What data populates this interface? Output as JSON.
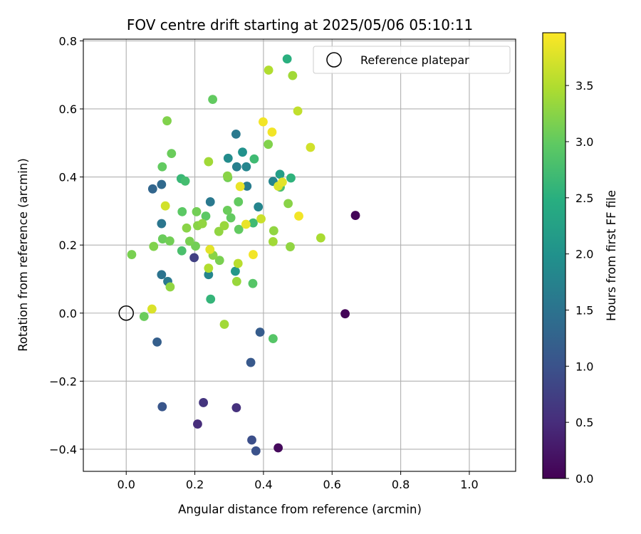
{
  "chart_data": {
    "type": "scatter",
    "title": "FOV centre drift starting at 2025/05/06 05:10:11",
    "xlabel": "Angular distance from reference (arcmin)",
    "ylabel": "Rotation from reference (arcmin)",
    "xlim": [
      -0.125,
      1.135
    ],
    "ylim": [
      -0.465,
      0.805
    ],
    "xticks": [
      "0.0",
      "0.2",
      "0.4",
      "0.6",
      "0.8",
      "1.0"
    ],
    "yticks": [
      "−0.4",
      "−0.2",
      "0.0",
      "0.2",
      "0.4",
      "0.6",
      "0.8"
    ],
    "grid": true,
    "legend": {
      "position": "top-right",
      "entries": [
        {
          "label": "Reference platepar",
          "marker": "hollow circle"
        }
      ]
    },
    "reference_point": {
      "x": 0.0,
      "y": 0.0
    },
    "colorbar": {
      "label": "Hours from first FF file",
      "colormap": "viridis",
      "range": [
        0.0,
        3.97
      ],
      "ticks": [
        "0.0",
        "0.5",
        "1.0",
        "1.5",
        "2.0",
        "2.5",
        "3.0",
        "3.5"
      ]
    },
    "points": [
      {
        "x": 0.668,
        "y": 0.287,
        "h": 0.05
      },
      {
        "x": 0.638,
        "y": -0.002,
        "h": 0.05
      },
      {
        "x": 0.443,
        "y": -0.396,
        "h": 0.1
      },
      {
        "x": 0.208,
        "y": -0.326,
        "h": 0.5
      },
      {
        "x": 0.225,
        "y": -0.263,
        "h": 0.6
      },
      {
        "x": 0.321,
        "y": -0.278,
        "h": 0.55
      },
      {
        "x": 0.198,
        "y": 0.163,
        "h": 0.75
      },
      {
        "x": 0.366,
        "y": -0.373,
        "h": 0.95
      },
      {
        "x": 0.378,
        "y": -0.405,
        "h": 1.0
      },
      {
        "x": 0.105,
        "y": -0.275,
        "h": 1.05
      },
      {
        "x": 0.363,
        "y": -0.145,
        "h": 1.1
      },
      {
        "x": 0.39,
        "y": -0.056,
        "h": 1.15
      },
      {
        "x": 0.09,
        "y": -0.085,
        "h": 1.2
      },
      {
        "x": 0.077,
        "y": 0.365,
        "h": 1.3
      },
      {
        "x": 0.103,
        "y": 0.378,
        "h": 1.35
      },
      {
        "x": 0.103,
        "y": 0.263,
        "h": 1.55
      },
      {
        "x": 0.103,
        "y": 0.113,
        "h": 1.5
      },
      {
        "x": 0.121,
        "y": 0.093,
        "h": 1.6
      },
      {
        "x": 0.245,
        "y": 0.327,
        "h": 1.6
      },
      {
        "x": 0.24,
        "y": 0.113,
        "h": 1.8
      },
      {
        "x": 0.32,
        "y": 0.526,
        "h": 1.6
      },
      {
        "x": 0.322,
        "y": 0.43,
        "h": 1.7
      },
      {
        "x": 0.35,
        "y": 0.43,
        "h": 1.8
      },
      {
        "x": 0.352,
        "y": 0.373,
        "h": 1.65
      },
      {
        "x": 0.385,
        "y": 0.312,
        "h": 1.8
      },
      {
        "x": 0.428,
        "y": 0.387,
        "h": 1.8
      },
      {
        "x": 0.297,
        "y": 0.455,
        "h": 1.9
      },
      {
        "x": 0.339,
        "y": 0.473,
        "h": 2.0
      },
      {
        "x": 0.318,
        "y": 0.123,
        "h": 2.1
      },
      {
        "x": 0.448,
        "y": 0.408,
        "h": 2.2
      },
      {
        "x": 0.469,
        "y": 0.747,
        "h": 2.5
      },
      {
        "x": 0.48,
        "y": 0.397,
        "h": 2.55
      },
      {
        "x": 0.246,
        "y": 0.041,
        "h": 2.6
      },
      {
        "x": 0.373,
        "y": 0.453,
        "h": 2.7
      },
      {
        "x": 0.37,
        "y": 0.265,
        "h": 2.7
      },
      {
        "x": 0.16,
        "y": 0.395,
        "h": 2.65
      },
      {
        "x": 0.172,
        "y": 0.388,
        "h": 2.75
      },
      {
        "x": 0.162,
        "y": 0.183,
        "h": 2.8
      },
      {
        "x": 0.449,
        "y": 0.37,
        "h": 2.8
      },
      {
        "x": 0.428,
        "y": -0.075,
        "h": 2.9
      },
      {
        "x": 0.369,
        "y": 0.087,
        "h": 2.9
      },
      {
        "x": 0.252,
        "y": 0.628,
        "h": 3.0
      },
      {
        "x": 0.163,
        "y": 0.298,
        "h": 2.95
      },
      {
        "x": 0.232,
        "y": 0.285,
        "h": 2.95
      },
      {
        "x": 0.305,
        "y": 0.28,
        "h": 3.0
      },
      {
        "x": 0.327,
        "y": 0.327,
        "h": 3.0
      },
      {
        "x": 0.295,
        "y": 0.302,
        "h": 3.05
      },
      {
        "x": 0.328,
        "y": 0.246,
        "h": 3.0
      },
      {
        "x": 0.205,
        "y": 0.298,
        "h": 3.1
      },
      {
        "x": 0.202,
        "y": 0.197,
        "h": 3.1
      },
      {
        "x": 0.185,
        "y": 0.211,
        "h": 3.15
      },
      {
        "x": 0.105,
        "y": 0.43,
        "h": 3.0
      },
      {
        "x": 0.132,
        "y": 0.469,
        "h": 3.05
      },
      {
        "x": 0.106,
        "y": 0.218,
        "h": 3.05
      },
      {
        "x": 0.127,
        "y": 0.212,
        "h": 3.1
      },
      {
        "x": 0.08,
        "y": 0.196,
        "h": 3.2
      },
      {
        "x": 0.119,
        "y": 0.565,
        "h": 3.2
      },
      {
        "x": 0.052,
        "y": -0.01,
        "h": 3.05
      },
      {
        "x": 0.016,
        "y": 0.172,
        "h": 3.15
      },
      {
        "x": 0.128,
        "y": 0.077,
        "h": 3.3
      },
      {
        "x": 0.176,
        "y": 0.25,
        "h": 3.25
      },
      {
        "x": 0.208,
        "y": 0.257,
        "h": 3.25
      },
      {
        "x": 0.222,
        "y": 0.263,
        "h": 3.3
      },
      {
        "x": 0.272,
        "y": 0.155,
        "h": 3.15
      },
      {
        "x": 0.253,
        "y": 0.17,
        "h": 3.25
      },
      {
        "x": 0.27,
        "y": 0.24,
        "h": 3.3
      },
      {
        "x": 0.286,
        "y": 0.257,
        "h": 3.35
      },
      {
        "x": 0.296,
        "y": 0.398,
        "h": 3.1
      },
      {
        "x": 0.295,
        "y": 0.403,
        "h": 3.25
      },
      {
        "x": 0.24,
        "y": 0.445,
        "h": 3.4
      },
      {
        "x": 0.24,
        "y": 0.132,
        "h": 3.5
      },
      {
        "x": 0.286,
        "y": -0.033,
        "h": 3.4
      },
      {
        "x": 0.322,
        "y": 0.093,
        "h": 3.35
      },
      {
        "x": 0.326,
        "y": 0.146,
        "h": 3.55
      },
      {
        "x": 0.414,
        "y": 0.496,
        "h": 3.2
      },
      {
        "x": 0.43,
        "y": 0.242,
        "h": 3.3
      },
      {
        "x": 0.428,
        "y": 0.21,
        "h": 3.4
      },
      {
        "x": 0.472,
        "y": 0.322,
        "h": 3.25
      },
      {
        "x": 0.478,
        "y": 0.195,
        "h": 3.3
      },
      {
        "x": 0.485,
        "y": 0.698,
        "h": 3.4
      },
      {
        "x": 0.567,
        "y": 0.221,
        "h": 3.45
      },
      {
        "x": 0.415,
        "y": 0.714,
        "h": 3.5
      },
      {
        "x": 0.5,
        "y": 0.594,
        "h": 3.6
      },
      {
        "x": 0.393,
        "y": 0.277,
        "h": 3.65
      },
      {
        "x": 0.537,
        "y": 0.487,
        "h": 3.7
      },
      {
        "x": 0.443,
        "y": 0.373,
        "h": 3.75
      },
      {
        "x": 0.455,
        "y": 0.385,
        "h": 3.8
      },
      {
        "x": 0.114,
        "y": 0.315,
        "h": 3.7
      },
      {
        "x": 0.075,
        "y": 0.012,
        "h": 3.75
      },
      {
        "x": 0.244,
        "y": 0.187,
        "h": 3.8
      },
      {
        "x": 0.332,
        "y": 0.372,
        "h": 3.85
      },
      {
        "x": 0.349,
        "y": 0.261,
        "h": 3.85
      },
      {
        "x": 0.37,
        "y": 0.172,
        "h": 3.9
      },
      {
        "x": 0.399,
        "y": 0.562,
        "h": 3.9
      },
      {
        "x": 0.425,
        "y": 0.532,
        "h": 3.9
      },
      {
        "x": 0.503,
        "y": 0.285,
        "h": 3.9
      }
    ]
  }
}
